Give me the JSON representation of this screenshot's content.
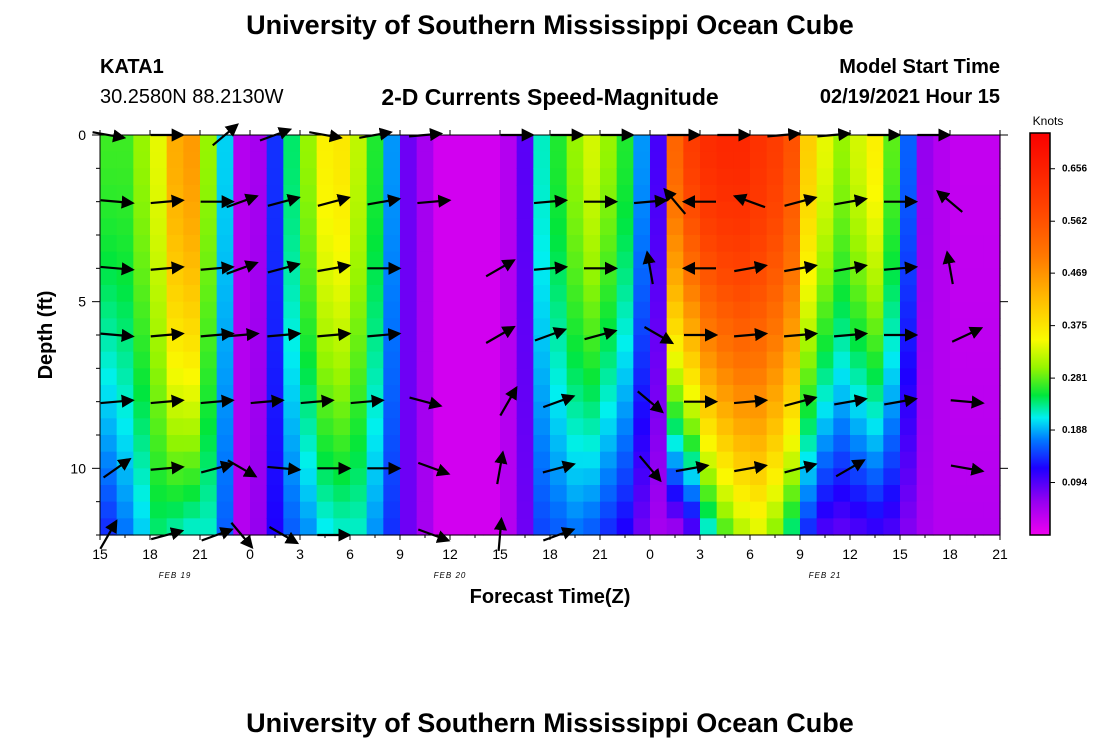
{
  "header": {
    "title_top": "University of Southern Mississippi Ocean Cube",
    "title_bottom": "University of Southern Mississippi Ocean Cube",
    "station_id": "KATA1",
    "station_coords": "30.2580N 88.2130W",
    "chart_title": "2-D Currents Speed-Magnitude",
    "model_start_label": "Model Start Time",
    "model_start_value": "02/19/2021 Hour 15"
  },
  "chart_data": {
    "type": "heatmap",
    "title": "2-D Currents Speed-Magnitude",
    "xlabel": "Forecast Time(Z)",
    "ylabel": "Depth (ft)",
    "colorbar_label": "Knots",
    "x_range_hours": [
      0,
      54
    ],
    "y_range_ft": [
      0,
      12
    ],
    "x_tick_labels": [
      "15",
      "18",
      "21",
      "0",
      "3",
      "6",
      "9",
      "12",
      "15",
      "18",
      "21",
      "0",
      "3",
      "6",
      "9",
      "12",
      "15",
      "18",
      "21"
    ],
    "y_tick_labels": [
      "0",
      "5",
      "10"
    ],
    "date_labels": [
      {
        "text": "FEB 19",
        "hour": 4.5
      },
      {
        "text": "FEB 20",
        "hour": 21
      },
      {
        "text": "FEB 21",
        "hour": 43.5
      }
    ],
    "colorbar": {
      "min": 0,
      "max": 0.72,
      "ticks": [
        "0.656",
        "0.562",
        "0.469",
        "0.375",
        "0.281",
        "0.188",
        "0.094"
      ],
      "tick_values": [
        0.656,
        0.562,
        0.469,
        0.375,
        0.281,
        0.188,
        0.094
      ]
    },
    "depth_levels_ft": [
      0,
      2,
      4,
      6,
      8,
      10,
      12
    ],
    "speed_surface_knots": [
      0.27,
      0.27,
      0.3,
      0.34,
      0.44,
      0.46,
      0.3,
      0.2,
      0.04,
      0.05,
      0.14,
      0.24,
      0.3,
      0.36,
      0.37,
      0.32,
      0.26,
      0.18,
      0.08,
      0.05,
      0.02,
      0.02,
      0.02,
      0.02,
      0.04,
      0.09,
      0.22,
      0.26,
      0.3,
      0.33,
      0.3,
      0.26,
      0.18,
      0.1,
      0.53,
      0.6,
      0.63,
      0.64,
      0.64,
      0.62,
      0.6,
      0.56,
      0.4,
      0.34,
      0.3,
      0.33,
      0.36,
      0.28,
      0.16,
      0.06,
      0.04,
      0.03,
      0.03,
      0.03
    ],
    "speed_bottom_knots": [
      0.14,
      0.17,
      0.2,
      0.24,
      0.23,
      0.22,
      0.22,
      0.16,
      0.04,
      0.06,
      0.12,
      0.16,
      0.18,
      0.21,
      0.22,
      0.22,
      0.18,
      0.14,
      0.08,
      0.05,
      0.02,
      0.02,
      0.02,
      0.02,
      0.04,
      0.08,
      0.15,
      0.16,
      0.17,
      0.16,
      0.14,
      0.12,
      0.08,
      0.05,
      0.06,
      0.1,
      0.22,
      0.28,
      0.32,
      0.34,
      0.3,
      0.24,
      0.14,
      0.1,
      0.09,
      0.1,
      0.11,
      0.1,
      0.07,
      0.05,
      0.04,
      0.04,
      0.04,
      0.04
    ],
    "vectors": [
      {
        "hour": 0.5,
        "depth": 0,
        "angle": 10
      },
      {
        "hour": 4,
        "depth": 0,
        "angle": 0
      },
      {
        "hour": 7.5,
        "depth": 0,
        "angle": -40
      },
      {
        "hour": 10.5,
        "depth": 0,
        "angle": -20
      },
      {
        "hour": 13.5,
        "depth": 0,
        "angle": 10
      },
      {
        "hour": 16.5,
        "depth": 0,
        "angle": -10
      },
      {
        "hour": 19.5,
        "depth": 0,
        "angle": -5
      },
      {
        "hour": 25,
        "depth": 0,
        "angle": 0
      },
      {
        "hour": 28,
        "depth": 0,
        "angle": 0
      },
      {
        "hour": 31,
        "depth": 0,
        "angle": 0
      },
      {
        "hour": 35,
        "depth": 0,
        "angle": 0
      },
      {
        "hour": 38,
        "depth": 0,
        "angle": 0
      },
      {
        "hour": 41,
        "depth": 0,
        "angle": -5
      },
      {
        "hour": 44,
        "depth": 0,
        "angle": -5
      },
      {
        "hour": 47,
        "depth": 0,
        "angle": 0
      },
      {
        "hour": 50,
        "depth": 0,
        "angle": 0
      },
      {
        "hour": 1,
        "depth": 2,
        "angle": 5
      },
      {
        "hour": 4,
        "depth": 2,
        "angle": -5
      },
      {
        "hour": 7,
        "depth": 2,
        "angle": 0
      },
      {
        "hour": 8.5,
        "depth": 2,
        "angle": -20
      },
      {
        "hour": 11,
        "depth": 2,
        "angle": -15
      },
      {
        "hour": 14,
        "depth": 2,
        "angle": -15
      },
      {
        "hour": 17,
        "depth": 2,
        "angle": -10
      },
      {
        "hour": 20,
        "depth": 2,
        "angle": -5
      },
      {
        "hour": 27,
        "depth": 2,
        "angle": -5
      },
      {
        "hour": 30,
        "depth": 2,
        "angle": 0
      },
      {
        "hour": 33,
        "depth": 2,
        "angle": -5
      },
      {
        "hour": 34.5,
        "depth": 2,
        "angle": -130
      },
      {
        "hour": 36,
        "depth": 2,
        "angle": 180
      },
      {
        "hour": 39,
        "depth": 2,
        "angle": -160
      },
      {
        "hour": 42,
        "depth": 2,
        "angle": -15
      },
      {
        "hour": 45,
        "depth": 2,
        "angle": -10
      },
      {
        "hour": 48,
        "depth": 2,
        "angle": 0
      },
      {
        "hour": 51,
        "depth": 2,
        "angle": -140
      },
      {
        "hour": 1,
        "depth": 4,
        "angle": 5
      },
      {
        "hour": 4,
        "depth": 4,
        "angle": -5
      },
      {
        "hour": 7,
        "depth": 4,
        "angle": -5
      },
      {
        "hour": 8.5,
        "depth": 4,
        "angle": -20
      },
      {
        "hour": 11,
        "depth": 4,
        "angle": -15
      },
      {
        "hour": 14,
        "depth": 4,
        "angle": -10
      },
      {
        "hour": 17,
        "depth": 4,
        "angle": 0
      },
      {
        "hour": 24,
        "depth": 4,
        "angle": -30
      },
      {
        "hour": 27,
        "depth": 4,
        "angle": -5
      },
      {
        "hour": 30,
        "depth": 4,
        "angle": 0
      },
      {
        "hour": 33,
        "depth": 4,
        "angle": -100
      },
      {
        "hour": 36,
        "depth": 4,
        "angle": 180
      },
      {
        "hour": 39,
        "depth": 4,
        "angle": -10
      },
      {
        "hour": 42,
        "depth": 4,
        "angle": -10
      },
      {
        "hour": 45,
        "depth": 4,
        "angle": -10
      },
      {
        "hour": 48,
        "depth": 4,
        "angle": -5
      },
      {
        "hour": 51,
        "depth": 4,
        "angle": -100
      },
      {
        "hour": 1,
        "depth": 6,
        "angle": 5
      },
      {
        "hour": 4,
        "depth": 6,
        "angle": -5
      },
      {
        "hour": 7,
        "depth": 6,
        "angle": -5
      },
      {
        "hour": 8.5,
        "depth": 6,
        "angle": -5
      },
      {
        "hour": 11,
        "depth": 6,
        "angle": -5
      },
      {
        "hour": 14,
        "depth": 6,
        "angle": -5
      },
      {
        "hour": 17,
        "depth": 6,
        "angle": -5
      },
      {
        "hour": 24,
        "depth": 6,
        "angle": -30
      },
      {
        "hour": 27,
        "depth": 6,
        "angle": -20
      },
      {
        "hour": 30,
        "depth": 6,
        "angle": -15
      },
      {
        "hour": 33.5,
        "depth": 6,
        "angle": 30
      },
      {
        "hour": 36,
        "depth": 6,
        "angle": 0
      },
      {
        "hour": 39,
        "depth": 6,
        "angle": -5
      },
      {
        "hour": 42,
        "depth": 6,
        "angle": -5
      },
      {
        "hour": 45,
        "depth": 6,
        "angle": -5
      },
      {
        "hour": 48,
        "depth": 6,
        "angle": 0
      },
      {
        "hour": 52,
        "depth": 6,
        "angle": -25
      },
      {
        "hour": 1,
        "depth": 8,
        "angle": -5
      },
      {
        "hour": 4,
        "depth": 8,
        "angle": -5
      },
      {
        "hour": 7,
        "depth": 8,
        "angle": -5
      },
      {
        "hour": 10,
        "depth": 8,
        "angle": -5
      },
      {
        "hour": 13,
        "depth": 8,
        "angle": -5
      },
      {
        "hour": 16,
        "depth": 8,
        "angle": -5
      },
      {
        "hour": 19.5,
        "depth": 8,
        "angle": 15
      },
      {
        "hour": 24.5,
        "depth": 8,
        "angle": -60
      },
      {
        "hour": 27.5,
        "depth": 8,
        "angle": -20
      },
      {
        "hour": 33,
        "depth": 8,
        "angle": 40
      },
      {
        "hour": 36,
        "depth": 8,
        "angle": 0
      },
      {
        "hour": 39,
        "depth": 8,
        "angle": -5
      },
      {
        "hour": 42,
        "depth": 8,
        "angle": -15
      },
      {
        "hour": 45,
        "depth": 8,
        "angle": -10
      },
      {
        "hour": 48,
        "depth": 8,
        "angle": -10
      },
      {
        "hour": 52,
        "depth": 8,
        "angle": 5
      },
      {
        "hour": 1,
        "depth": 10,
        "angle": -35
      },
      {
        "hour": 4,
        "depth": 10,
        "angle": -5
      },
      {
        "hour": 7,
        "depth": 10,
        "angle": -15
      },
      {
        "hour": 8.5,
        "depth": 10,
        "angle": 30
      },
      {
        "hour": 11,
        "depth": 10,
        "angle": 5
      },
      {
        "hour": 14,
        "depth": 10,
        "angle": 0
      },
      {
        "hour": 17,
        "depth": 10,
        "angle": 0
      },
      {
        "hour": 20,
        "depth": 10,
        "angle": 20
      },
      {
        "hour": 24,
        "depth": 10,
        "angle": -80
      },
      {
        "hour": 27.5,
        "depth": 10,
        "angle": -15
      },
      {
        "hour": 33,
        "depth": 10,
        "angle": 50
      },
      {
        "hour": 35.5,
        "depth": 10,
        "angle": -10
      },
      {
        "hour": 39,
        "depth": 10,
        "angle": -10
      },
      {
        "hour": 42,
        "depth": 10,
        "angle": -15
      },
      {
        "hour": 45,
        "depth": 10,
        "angle": -30
      },
      {
        "hour": 52,
        "depth": 10,
        "angle": 10
      },
      {
        "hour": 0.5,
        "depth": 12,
        "angle": -60
      },
      {
        "hour": 4,
        "depth": 12,
        "angle": -15
      },
      {
        "hour": 7,
        "depth": 12,
        "angle": -20
      },
      {
        "hour": 8.5,
        "depth": 12,
        "angle": 50
      },
      {
        "hour": 11,
        "depth": 12,
        "angle": 30
      },
      {
        "hour": 14,
        "depth": 12,
        "angle": 0
      },
      {
        "hour": 20,
        "depth": 12,
        "angle": 20
      },
      {
        "hour": 24,
        "depth": 12,
        "angle": -85
      },
      {
        "hour": 27.5,
        "depth": 12,
        "angle": -20
      }
    ]
  }
}
